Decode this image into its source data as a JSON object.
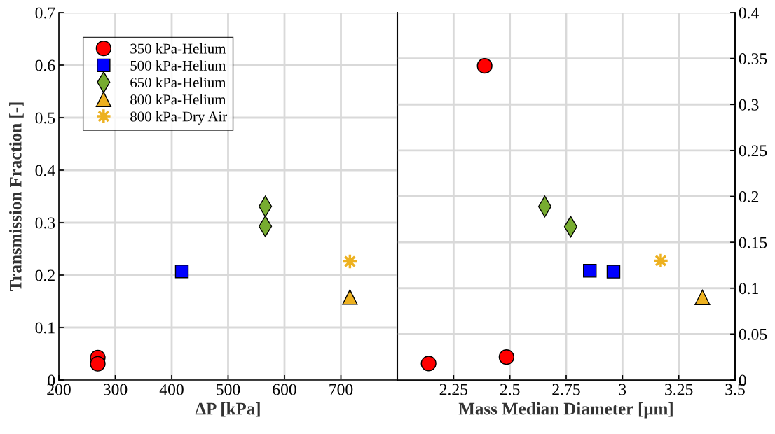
{
  "chart_data": [
    {
      "type": "scatter",
      "xlabel": "ΔP [kPa]",
      "ylabel": "Transmission Fraction [-]",
      "xlim": [
        200,
        800
      ],
      "xticks": [
        200,
        300,
        400,
        500,
        600,
        700,
        {
          "value": 800,
          "label": null
        }
      ],
      "ylim": [
        0,
        0.7
      ],
      "yticks": [
        0,
        0.1,
        0.2,
        0.3,
        0.4,
        0.5,
        0.6,
        0.7
      ],
      "grid": true,
      "legend": "top left",
      "series": [
        {
          "name": "350 kPa-Helium",
          "color": "#ff0000",
          "marker": "circle",
          "x": [
            269,
            269
          ],
          "values": [
            0.043,
            0.031
          ]
        },
        {
          "name": "500 kPa-Helium",
          "color": "#0000ff",
          "marker": "square",
          "x": [
            418
          ],
          "values": [
            0.207
          ]
        },
        {
          "name": "650 kPa-Helium",
          "color": "#77ac30",
          "marker": "diamond",
          "x": [
            566,
            566
          ],
          "values": [
            0.331,
            0.293
          ]
        },
        {
          "name": "800 kPa-Helium",
          "color": "#edb120",
          "marker": "triangle",
          "x": [
            716
          ],
          "values": [
            0.158
          ]
        },
        {
          "name": "800 kPa-Dry Air",
          "color": "#edb120",
          "marker": "star",
          "x": [
            716
          ],
          "values": [
            0.226
          ]
        }
      ]
    },
    {
      "type": "scatter",
      "xlabel": "Mass Median Diameter [μm]",
      "xlim": [
        2,
        3.5
      ],
      "xticks": [
        {
          "value": 2,
          "label": null
        },
        2.25,
        2.5,
        2.75,
        3,
        3.25,
        3.5
      ],
      "y2lim": [
        0,
        0.4
      ],
      "y2ticks": [
        0,
        0.05,
        0.1,
        0.15,
        0.2,
        0.25,
        0.3,
        0.35,
        0.4
      ],
      "grid": true,
      "series": [
        {
          "color": "#ff0000",
          "marker": "circle",
          "axis": "y2",
          "x": [
            2.139,
            2.485,
            2.388
          ],
          "values": [
            0.018,
            0.025,
            0.342
          ]
        },
        {
          "color": "#0000ff",
          "marker": "square",
          "axis": "y2",
          "x": [
            2.855,
            2.96
          ],
          "values": [
            0.119,
            0.118
          ]
        },
        {
          "color": "#77ac30",
          "marker": "diamond",
          "axis": "y2",
          "x": [
            2.655,
            2.77
          ],
          "values": [
            0.189,
            0.167
          ]
        },
        {
          "color": "#edb120",
          "marker": "triangle",
          "axis": "y2",
          "x": [
            3.355
          ],
          "values": [
            0.09
          ]
        },
        {
          "color": "#edb120",
          "marker": "star",
          "axis": "y2",
          "x": [
            3.17
          ],
          "values": [
            0.13
          ]
        }
      ]
    }
  ]
}
